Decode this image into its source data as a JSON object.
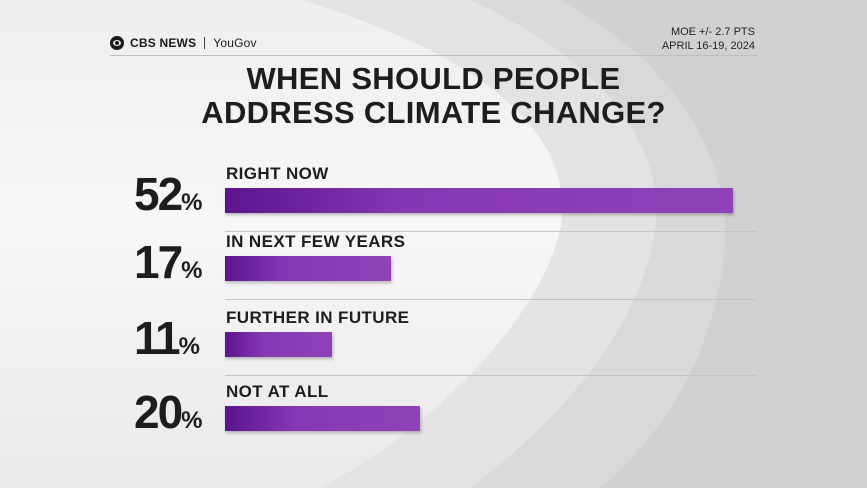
{
  "brand": {
    "network": "CBS NEWS",
    "partner": "YouGov"
  },
  "meta": {
    "moe": "MOE +/- 2.7 PTS",
    "dates": "APRIL 16-19, 2024"
  },
  "colors": {
    "bar": "#8a3bb5",
    "bar_dark": "#5c148f",
    "text": "#1d1d1d"
  },
  "chart_data": {
    "type": "bar",
    "orientation": "horizontal",
    "title_lines": [
      "WHEN SHOULD PEOPLE",
      "ADDRESS CLIMATE CHANGE?"
    ],
    "categories": [
      "RIGHT NOW",
      "IN NEXT FEW YEARS",
      "FURTHER IN FUTURE",
      "NOT AT ALL"
    ],
    "values": [
      52,
      17,
      11,
      20
    ],
    "value_labels": [
      "52",
      "17",
      "11",
      "20"
    ],
    "unit": "%",
    "xlim": [
      0,
      52
    ],
    "grid": false,
    "legend": false
  }
}
